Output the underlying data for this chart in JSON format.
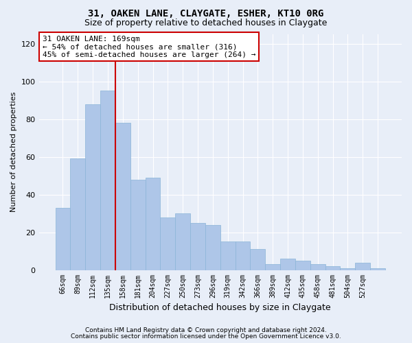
{
  "title": "31, OAKEN LANE, CLAYGATE, ESHER, KT10 0RG",
  "subtitle": "Size of property relative to detached houses in Claygate",
  "xlabel": "Distribution of detached houses by size in Claygate",
  "ylabel": "Number of detached properties",
  "bar_values": [
    33,
    59,
    88,
    95,
    78,
    48,
    49,
    28,
    30,
    25,
    24,
    15,
    15,
    11,
    3,
    6,
    5,
    3,
    2,
    1,
    4,
    1
  ],
  "bar_labels": [
    "66sqm",
    "89sqm",
    "112sqm",
    "135sqm",
    "158sqm",
    "181sqm",
    "204sqm",
    "227sqm",
    "250sqm",
    "273sqm",
    "296sqm",
    "319sqm",
    "342sqm",
    "366sqm",
    "389sqm",
    "412sqm",
    "435sqm",
    "458sqm",
    "481sqm",
    "504sqm",
    "527sqm",
    ""
  ],
  "bar_color": "#aec6e8",
  "bar_edgecolor": "#8ab4d8",
  "ylim": [
    0,
    125
  ],
  "yticks": [
    0,
    20,
    40,
    60,
    80,
    100,
    120
  ],
  "vline_x_index": 4.5,
  "annotation_text": "31 OAKEN LANE: 169sqm\n← 54% of detached houses are smaller (316)\n45% of semi-detached houses are larger (264) →",
  "annotation_box_color": "#ffffff",
  "annotation_box_edgecolor": "#cc0000",
  "footer_line1": "Contains HM Land Registry data © Crown copyright and database right 2024.",
  "footer_line2": "Contains public sector information licensed under the Open Government Licence v3.0.",
  "background_color": "#e8eef8",
  "grid_color": "#ffffff",
  "vline_color": "#cc0000",
  "title_fontsize": 10,
  "subtitle_fontsize": 9,
  "tick_fontsize": 7,
  "ylabel_fontsize": 8,
  "xlabel_fontsize": 9
}
